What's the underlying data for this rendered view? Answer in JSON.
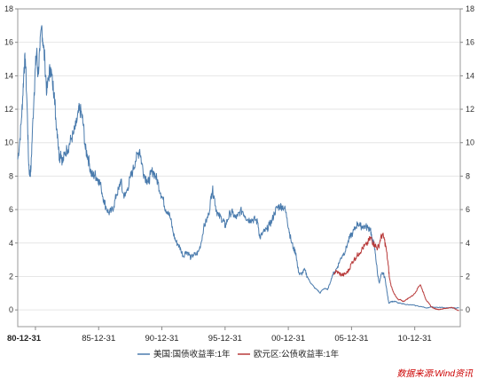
{
  "chart_data": {
    "type": "line",
    "title": "",
    "xlabel": "",
    "ylabel": "",
    "x_ticks": [
      "80-12-31",
      "85-12-31",
      "90-12-31",
      "95-12-31",
      "00-12-31",
      "05-12-31",
      "10-12-31"
    ],
    "x_range": [
      1979.6,
      2014.6
    ],
    "ylim": [
      -1,
      18
    ],
    "y_ticks": [
      0,
      2,
      4,
      6,
      8,
      10,
      12,
      14,
      16,
      18
    ],
    "grid": "horizontal",
    "legend": "bottom",
    "series": [
      {
        "name": "美国:国债收益率:1年",
        "color": "#4a7bad",
        "points": [
          [
            1979.6,
            9.0
          ],
          [
            1979.75,
            10.0
          ],
          [
            1979.9,
            11.5
          ],
          [
            1980.0,
            12.8
          ],
          [
            1980.1,
            14.5
          ],
          [
            1980.2,
            15.0
          ],
          [
            1980.35,
            12.0
          ],
          [
            1980.45,
            9.0
          ],
          [
            1980.55,
            8.0
          ],
          [
            1980.65,
            8.5
          ],
          [
            1980.75,
            10.5
          ],
          [
            1980.9,
            13.0
          ],
          [
            1981.0,
            14.5
          ],
          [
            1981.1,
            15.5
          ],
          [
            1981.2,
            14.0
          ],
          [
            1981.35,
            15.5
          ],
          [
            1981.5,
            17.0
          ],
          [
            1981.6,
            16.0
          ],
          [
            1981.75,
            14.8
          ],
          [
            1981.9,
            13.0
          ],
          [
            1982.05,
            14.0
          ],
          [
            1982.2,
            14.5
          ],
          [
            1982.35,
            13.5
          ],
          [
            1982.5,
            13.0
          ],
          [
            1982.6,
            11.5
          ],
          [
            1982.75,
            10.5
          ],
          [
            1982.9,
            9.0
          ],
          [
            1983.0,
            9.5
          ],
          [
            1983.15,
            8.8
          ],
          [
            1983.3,
            9.3
          ],
          [
            1983.5,
            9.6
          ],
          [
            1983.65,
            9.8
          ],
          [
            1983.8,
            10.2
          ],
          [
            1984.0,
            10.5
          ],
          [
            1984.2,
            11.0
          ],
          [
            1984.4,
            11.8
          ],
          [
            1984.5,
            12.0
          ],
          [
            1984.65,
            11.7
          ],
          [
            1984.8,
            11.0
          ],
          [
            1984.95,
            9.6
          ],
          [
            1985.1,
            9.3
          ],
          [
            1985.25,
            8.8
          ],
          [
            1985.4,
            8.2
          ],
          [
            1985.55,
            8.0
          ],
          [
            1985.7,
            8.1
          ],
          [
            1985.85,
            7.9
          ],
          [
            1986.0,
            7.8
          ],
          [
            1986.2,
            7.3
          ],
          [
            1986.4,
            6.6
          ],
          [
            1986.6,
            6.1
          ],
          [
            1986.8,
            5.8
          ],
          [
            1987.0,
            5.9
          ],
          [
            1987.2,
            6.2
          ],
          [
            1987.4,
            6.9
          ],
          [
            1987.6,
            7.2
          ],
          [
            1987.75,
            7.8
          ],
          [
            1987.9,
            7.0
          ],
          [
            1988.1,
            6.8
          ],
          [
            1988.3,
            7.3
          ],
          [
            1988.5,
            7.9
          ],
          [
            1988.7,
            8.3
          ],
          [
            1988.9,
            8.9
          ],
          [
            1989.1,
            9.3
          ],
          [
            1989.25,
            9.6
          ],
          [
            1989.4,
            8.8
          ],
          [
            1989.6,
            8.1
          ],
          [
            1989.8,
            7.8
          ],
          [
            1989.95,
            7.6
          ],
          [
            1990.1,
            8.1
          ],
          [
            1990.3,
            8.3
          ],
          [
            1990.5,
            8.0
          ],
          [
            1990.7,
            7.6
          ],
          [
            1990.9,
            7.0
          ],
          [
            1991.1,
            6.6
          ],
          [
            1991.3,
            6.0
          ],
          [
            1991.5,
            5.9
          ],
          [
            1991.7,
            5.4
          ],
          [
            1991.9,
            4.6
          ],
          [
            1992.1,
            4.1
          ],
          [
            1992.3,
            3.9
          ],
          [
            1992.5,
            3.6
          ],
          [
            1992.7,
            3.2
          ],
          [
            1992.9,
            3.5
          ],
          [
            1993.1,
            3.4
          ],
          [
            1993.3,
            3.1
          ],
          [
            1993.5,
            3.3
          ],
          [
            1993.7,
            3.3
          ],
          [
            1993.9,
            3.5
          ],
          [
            1994.1,
            4.0
          ],
          [
            1994.3,
            4.9
          ],
          [
            1994.5,
            5.3
          ],
          [
            1994.7,
            5.7
          ],
          [
            1994.9,
            6.8
          ],
          [
            1995.0,
            7.2
          ],
          [
            1995.15,
            6.7
          ],
          [
            1995.3,
            6.0
          ],
          [
            1995.5,
            5.6
          ],
          [
            1995.7,
            5.5
          ],
          [
            1995.9,
            5.3
          ],
          [
            1996.0,
            5.0
          ],
          [
            1996.2,
            5.4
          ],
          [
            1996.4,
            5.8
          ],
          [
            1996.6,
            5.8
          ],
          [
            1996.8,
            5.5
          ],
          [
            1997.0,
            5.6
          ],
          [
            1997.2,
            5.9
          ],
          [
            1997.4,
            5.9
          ],
          [
            1997.6,
            5.6
          ],
          [
            1997.8,
            5.4
          ],
          [
            1998.0,
            5.4
          ],
          [
            1998.2,
            5.4
          ],
          [
            1998.4,
            5.4
          ],
          [
            1998.6,
            5.2
          ],
          [
            1998.75,
            4.3
          ],
          [
            1998.9,
            4.5
          ],
          [
            1999.1,
            4.7
          ],
          [
            1999.3,
            4.8
          ],
          [
            1999.5,
            5.1
          ],
          [
            1999.7,
            5.3
          ],
          [
            1999.9,
            5.8
          ],
          [
            2000.1,
            6.1
          ],
          [
            2000.3,
            6.2
          ],
          [
            2000.5,
            6.2
          ],
          [
            2000.7,
            6.1
          ],
          [
            2000.9,
            5.5
          ],
          [
            2001.05,
            4.8
          ],
          [
            2001.2,
            4.2
          ],
          [
            2001.4,
            3.7
          ],
          [
            2001.6,
            3.4
          ],
          [
            2001.75,
            2.5
          ],
          [
            2001.9,
            2.1
          ],
          [
            2002.1,
            2.2
          ],
          [
            2002.3,
            2.4
          ],
          [
            2002.5,
            2.0
          ],
          [
            2002.7,
            1.7
          ],
          [
            2002.9,
            1.5
          ],
          [
            2003.1,
            1.3
          ],
          [
            2003.3,
            1.2
          ],
          [
            2003.5,
            1.0
          ],
          [
            2003.7,
            1.2
          ],
          [
            2003.9,
            1.3
          ],
          [
            2004.1,
            1.2
          ],
          [
            2004.3,
            1.6
          ],
          [
            2004.5,
            2.1
          ],
          [
            2004.7,
            2.3
          ],
          [
            2004.9,
            2.6
          ],
          [
            2005.1,
            3.0
          ],
          [
            2005.3,
            3.3
          ],
          [
            2005.5,
            3.5
          ],
          [
            2005.7,
            4.0
          ],
          [
            2005.9,
            4.4
          ],
          [
            2006.1,
            4.6
          ],
          [
            2006.3,
            4.9
          ],
          [
            2006.5,
            5.2
          ],
          [
            2006.7,
            5.0
          ],
          [
            2006.9,
            5.0
          ],
          [
            2007.1,
            5.0
          ],
          [
            2007.3,
            4.9
          ],
          [
            2007.5,
            4.9
          ],
          [
            2007.6,
            4.2
          ],
          [
            2007.75,
            4.0
          ],
          [
            2007.9,
            3.3
          ],
          [
            2008.05,
            2.2
          ],
          [
            2008.2,
            1.6
          ],
          [
            2008.35,
            2.1
          ],
          [
            2008.5,
            2.2
          ],
          [
            2008.65,
            1.9
          ],
          [
            2008.8,
            1.1
          ],
          [
            2008.95,
            0.4
          ],
          [
            2009.1,
            0.5
          ],
          [
            2009.3,
            0.5
          ],
          [
            2009.5,
            0.5
          ],
          [
            2009.7,
            0.4
          ],
          [
            2009.9,
            0.4
          ],
          [
            2010.2,
            0.35
          ],
          [
            2010.5,
            0.3
          ],
          [
            2010.8,
            0.3
          ],
          [
            2011.1,
            0.25
          ],
          [
            2011.5,
            0.2
          ],
          [
            2011.9,
            0.12
          ],
          [
            2012.3,
            0.17
          ],
          [
            2012.7,
            0.16
          ],
          [
            2013.1,
            0.15
          ],
          [
            2013.5,
            0.13
          ],
          [
            2013.9,
            0.12
          ],
          [
            2014.2,
            0.11
          ],
          [
            2014.5,
            0.12
          ]
        ]
      },
      {
        "name": "欧元区:公债收益率:1年",
        "color": "#b83a3a",
        "points": [
          [
            2004.6,
            2.2
          ],
          [
            2004.8,
            2.3
          ],
          [
            2005.0,
            2.2
          ],
          [
            2005.2,
            2.1
          ],
          [
            2005.4,
            2.1
          ],
          [
            2005.6,
            2.2
          ],
          [
            2005.8,
            2.4
          ],
          [
            2006.0,
            2.8
          ],
          [
            2006.2,
            3.0
          ],
          [
            2006.4,
            3.2
          ],
          [
            2006.6,
            3.4
          ],
          [
            2006.8,
            3.6
          ],
          [
            2007.0,
            3.8
          ],
          [
            2007.2,
            3.9
          ],
          [
            2007.4,
            4.2
          ],
          [
            2007.55,
            4.3
          ],
          [
            2007.7,
            4.0
          ],
          [
            2007.85,
            3.9
          ],
          [
            2008.0,
            3.7
          ],
          [
            2008.15,
            3.8
          ],
          [
            2008.3,
            4.3
          ],
          [
            2008.45,
            4.5
          ],
          [
            2008.6,
            4.2
          ],
          [
            2008.75,
            3.6
          ],
          [
            2008.9,
            2.7
          ],
          [
            2009.0,
            1.9
          ],
          [
            2009.15,
            1.4
          ],
          [
            2009.3,
            1.1
          ],
          [
            2009.5,
            0.8
          ],
          [
            2009.7,
            0.6
          ],
          [
            2009.9,
            0.6
          ],
          [
            2010.1,
            0.5
          ],
          [
            2010.3,
            0.6
          ],
          [
            2010.5,
            0.7
          ],
          [
            2010.7,
            0.8
          ],
          [
            2010.9,
            0.9
          ],
          [
            2011.1,
            1.1
          ],
          [
            2011.3,
            1.4
          ],
          [
            2011.45,
            1.5
          ],
          [
            2011.6,
            1.2
          ],
          [
            2011.75,
            0.9
          ],
          [
            2011.9,
            0.6
          ],
          [
            2012.1,
            0.4
          ],
          [
            2012.3,
            0.2
          ],
          [
            2012.5,
            0.1
          ],
          [
            2012.7,
            0.05
          ],
          [
            2012.9,
            0.03
          ],
          [
            2013.1,
            0.05
          ],
          [
            2013.3,
            0.08
          ],
          [
            2013.5,
            0.1
          ],
          [
            2013.7,
            0.12
          ],
          [
            2013.9,
            0.15
          ],
          [
            2014.1,
            0.1
          ],
          [
            2014.3,
            0.02
          ],
          [
            2014.5,
            -0.05
          ]
        ]
      }
    ]
  },
  "source_note": "数据来源:Wind资讯"
}
